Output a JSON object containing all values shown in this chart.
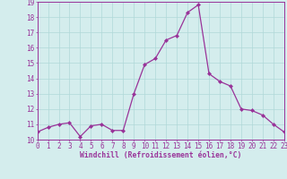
{
  "x": [
    0,
    1,
    2,
    3,
    4,
    5,
    6,
    7,
    8,
    9,
    10,
    11,
    12,
    13,
    14,
    15,
    16,
    17,
    18,
    19,
    20,
    21,
    22,
    23
  ],
  "y": [
    10.5,
    10.8,
    11.0,
    11.1,
    10.2,
    10.9,
    11.0,
    10.6,
    10.6,
    13.0,
    14.9,
    15.3,
    16.5,
    16.8,
    18.3,
    18.8,
    14.3,
    13.8,
    13.5,
    12.0,
    11.9,
    11.6,
    11.0,
    10.5
  ],
  "line_color": "#993399",
  "marker": "D",
  "marker_size": 2.0,
  "linewidth": 0.9,
  "background_color": "#d4eded",
  "grid_color": "#b0d8d8",
  "xlabel": "Windchill (Refroidissement éolien,°C)",
  "xlabel_color": "#993399",
  "tick_color": "#993399",
  "ylim": [
    10,
    19
  ],
  "xlim": [
    0,
    23
  ],
  "yticks": [
    10,
    11,
    12,
    13,
    14,
    15,
    16,
    17,
    18,
    19
  ],
  "xticks": [
    0,
    1,
    2,
    3,
    4,
    5,
    6,
    7,
    8,
    9,
    10,
    11,
    12,
    13,
    14,
    15,
    16,
    17,
    18,
    19,
    20,
    21,
    22,
    23
  ],
  "spine_color": "#993399",
  "label_fontsize": 5.8,
  "tick_fontsize": 5.5
}
